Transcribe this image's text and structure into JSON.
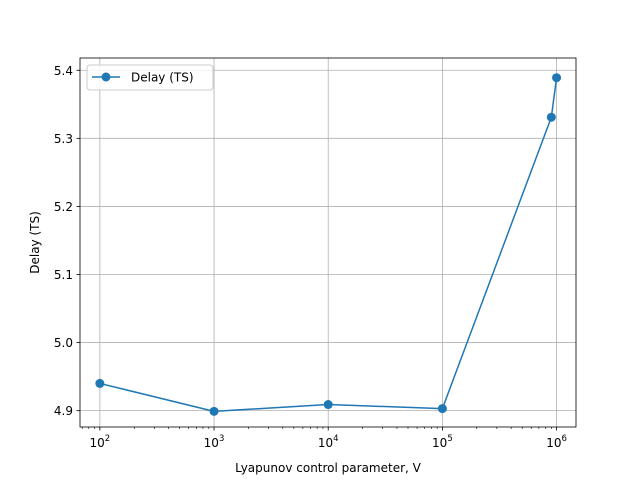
{
  "chart_data": {
    "type": "line",
    "title": "",
    "xlabel": "Lyapunov control parameter, V",
    "ylabel": "Delay (TS)",
    "xscale": "log",
    "xlim": [
      67,
      1480000
    ],
    "ylim": [
      4.876,
      5.418
    ],
    "grid": true,
    "legend_position": "upper left",
    "x_ticks": [
      {
        "value": 100,
        "base": "10",
        "exp": "2"
      },
      {
        "value": 1000,
        "base": "10",
        "exp": "3"
      },
      {
        "value": 10000,
        "base": "10",
        "exp": "4"
      },
      {
        "value": 100000,
        "base": "10",
        "exp": "5"
      },
      {
        "value": 1000000,
        "base": "10",
        "exp": "6"
      }
    ],
    "y_ticks": [
      "4.9",
      "5.0",
      "5.1",
      "5.2",
      "5.3",
      "5.4"
    ],
    "series": [
      {
        "name": "Delay (TS)",
        "color": "#1f77b4",
        "marker": "circle",
        "x": [
          100,
          1000,
          10000,
          100000,
          900000,
          1000000
        ],
        "y": [
          4.94,
          4.899,
          4.909,
          4.903,
          5.331,
          5.389
        ]
      }
    ]
  }
}
